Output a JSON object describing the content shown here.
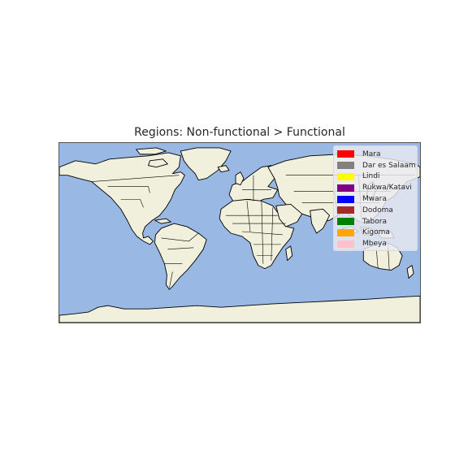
{
  "title": "Regions: Non-functional > Functional",
  "map": {
    "ocean_color": "#99b8e3",
    "land_color": "#f0f0dc",
    "border_color": "#000000"
  },
  "legend": {
    "items": [
      {
        "label": "Mara",
        "color": "#ff0000"
      },
      {
        "label": "Dar es Salaam",
        "color": "#808080"
      },
      {
        "label": "Lindi",
        "color": "#ffff00"
      },
      {
        "label": "Rukwa/Katavi",
        "color": "#800080"
      },
      {
        "label": "Mwara",
        "color": "#0000ff"
      },
      {
        "label": "Dodoma",
        "color": "#a52a2a"
      },
      {
        "label": "Tabora",
        "color": "#008000"
      },
      {
        "label": "Kigoma",
        "color": "#ffa500"
      },
      {
        "label": "Mbeya",
        "color": "#ffc0cb"
      }
    ]
  }
}
